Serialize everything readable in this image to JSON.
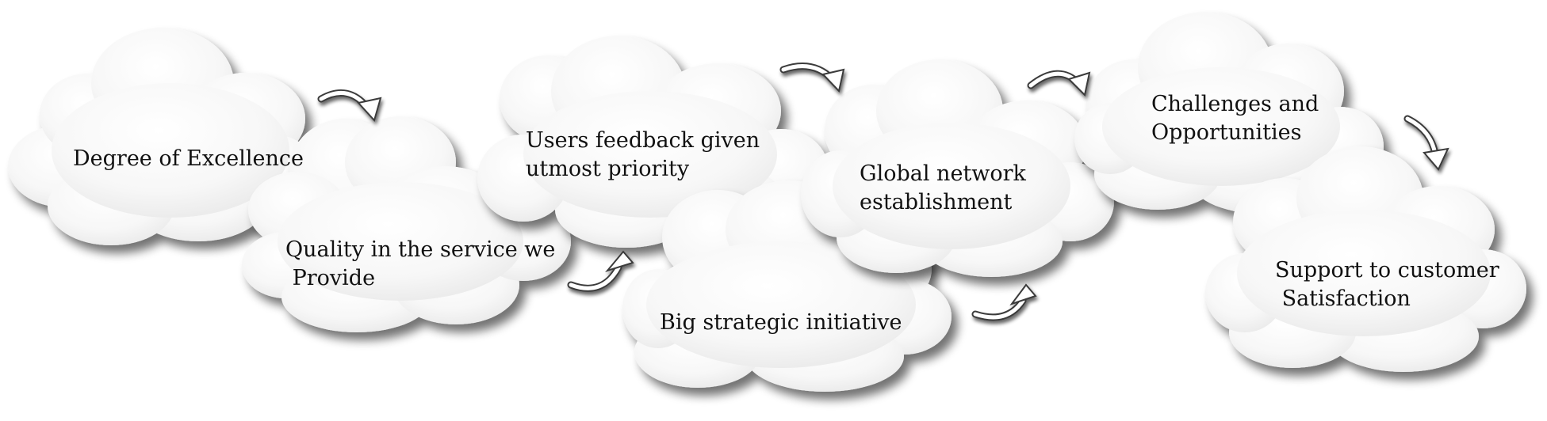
{
  "diagram": {
    "style": {
      "cloud_fill": "#ffffff",
      "cloud_shade": "#e9e9e9",
      "shadow": "#000000",
      "arrow": "#3a3a3a",
      "text": "#111111"
    },
    "clouds": [
      {
        "id": "degree",
        "lines": [
          "Degree of Excellence"
        ]
      },
      {
        "id": "quality",
        "lines": [
          "Quality in the service we",
          " Provide"
        ]
      },
      {
        "id": "feedback",
        "lines": [
          "Users feedback given",
          "utmost priority"
        ]
      },
      {
        "id": "strategic",
        "lines": [
          "Big strategic initiative"
        ]
      },
      {
        "id": "global",
        "lines": [
          "Global network",
          "establishment"
        ]
      },
      {
        "id": "challenges",
        "lines": [
          "Challenges and",
          "Opportunities"
        ]
      },
      {
        "id": "support",
        "lines": [
          "Support to customer",
          " Satisfaction"
        ]
      }
    ],
    "arrows": [
      "arrow-1",
      "arrow-2",
      "arrow-3",
      "arrow-4",
      "arrow-5",
      "arrow-6"
    ]
  }
}
